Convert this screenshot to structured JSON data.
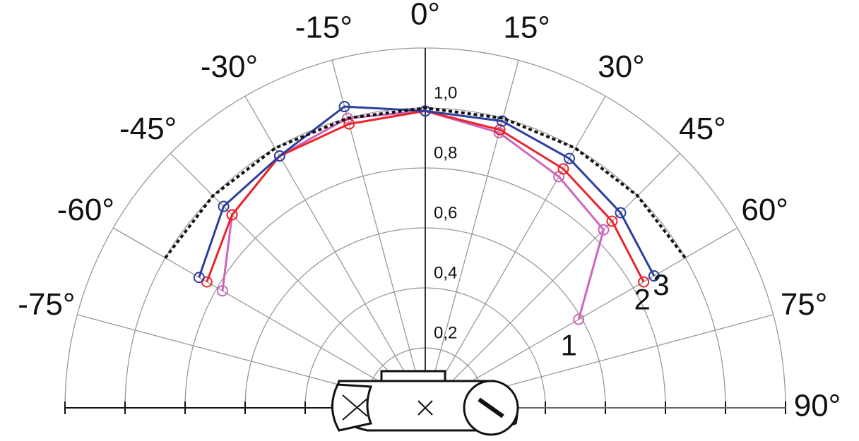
{
  "chart_data": {
    "type": "polar",
    "theta": [
      -60,
      -45,
      -30,
      -15,
      0,
      15,
      30,
      45,
      60
    ],
    "series": [
      {
        "name": "1",
        "color": "#cc66bb",
        "values": [
          0.78,
          0.91,
          0.97,
          1.0,
          0.99,
          0.95,
          0.89,
          0.84,
          0.59
        ]
      },
      {
        "name": "2",
        "color": "#e8262a",
        "values": [
          0.84,
          0.91,
          0.97,
          0.98,
          0.99,
          0.96,
          0.92,
          0.88,
          0.84
        ]
      },
      {
        "name": "3",
        "color": "#2b3f9e",
        "values": [
          0.87,
          0.95,
          0.97,
          1.04,
          0.99,
          0.99,
          0.96,
          0.92,
          0.88
        ]
      },
      {
        "color": "#111111",
        "dashed": true,
        "values": [
          1,
          1,
          1,
          1,
          1,
          1,
          1,
          1,
          1
        ]
      }
    ],
    "rlim": [
      0,
      1.2
    ],
    "rticks": [
      {
        "value": 0.2,
        "label": "0,2"
      },
      {
        "value": 0.4,
        "label": "0,4"
      },
      {
        "value": 0.6,
        "label": "0,6"
      },
      {
        "value": 0.8,
        "label": "0,8"
      },
      {
        "value": 1.0,
        "label": "1,0"
      }
    ],
    "thetaticks": [
      {
        "value": -75,
        "label": "-75°"
      },
      {
        "value": -60,
        "label": "-60°"
      },
      {
        "value": -45,
        "label": "-45°"
      },
      {
        "value": -30,
        "label": "-30°"
      },
      {
        "value": -15,
        "label": "-15°"
      },
      {
        "value": 0,
        "label": "0°"
      },
      {
        "value": 15,
        "label": "15°"
      },
      {
        "value": 30,
        "label": "30°"
      },
      {
        "value": 45,
        "label": "45°"
      },
      {
        "value": 60,
        "label": "60°"
      },
      {
        "value": 75,
        "label": "75°"
      },
      {
        "value": 90,
        "label": "90°"
      }
    ],
    "grid": true
  }
}
